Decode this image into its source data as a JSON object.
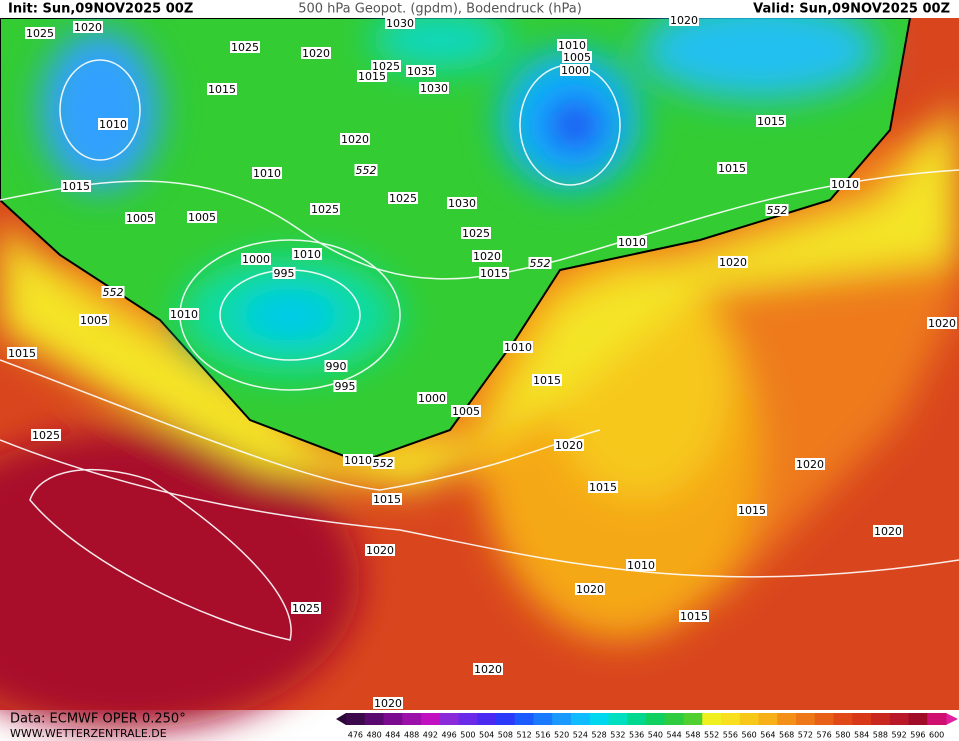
{
  "header": {
    "init": "Init: Sun,09NOV2025 00Z",
    "title": "500 hPa Geopot. (gpdm), Bodendruck (hPa)",
    "valid": "Valid: Sun,09NOV2025 00Z"
  },
  "map": {
    "labels": [
      "1025",
      "1020",
      "1025",
      "1020",
      "1030",
      "1025",
      "1015",
      "1035",
      "1030",
      "1010",
      "1005",
      "1000",
      "1020",
      "1015",
      "1010",
      "1020",
      "1015",
      "552",
      "1010",
      "1015",
      "1010",
      "1015",
      "1025",
      "1030",
      "552",
      "1005",
      "1005",
      "1025",
      "1025",
      "1010",
      "1020",
      "1000",
      "995",
      "1010",
      "1015",
      "552",
      "1020",
      "552",
      "1005",
      "1010",
      "1020",
      "1015",
      "990",
      "1010",
      "995",
      "1015",
      "1000",
      "1005",
      "1025",
      "1020",
      "1010",
      "552",
      "1020",
      "1015",
      "1015",
      "1015",
      "1020",
      "1020",
      "1010",
      "1020",
      "1025",
      "1015",
      "1020",
      "1020"
    ]
  },
  "colorbar": {
    "labels": [
      "476",
      "480",
      "484",
      "488",
      "492",
      "496",
      "500",
      "504",
      "508",
      "512",
      "516",
      "520",
      "524",
      "528",
      "532",
      "536",
      "540",
      "544",
      "548",
      "552",
      "556",
      "560",
      "564",
      "568",
      "572",
      "576",
      "580",
      "584",
      "588",
      "592",
      "596",
      "600"
    ],
    "colors": [
      "#3c0a4a",
      "#5a0a6e",
      "#7a0a8e",
      "#9a10a8",
      "#c010c0",
      "#8a2ad8",
      "#6a2ae8",
      "#4a2af0",
      "#2a3af8",
      "#1a5aff",
      "#1a7aff",
      "#1a9aff",
      "#10bcff",
      "#00d8f0",
      "#00e0c0",
      "#00d890",
      "#10d060",
      "#30cc40",
      "#50d030",
      "#f0f020",
      "#f8e020",
      "#f8c818",
      "#f8b018",
      "#f49018",
      "#ee7818",
      "#e86018",
      "#e04818",
      "#d83818",
      "#c82820",
      "#b81828",
      "#a00c28",
      "#d01070"
    ]
  },
  "footer": {
    "data": "Data: ECMWF OPER 0.250°",
    "site": "WWW.WETTERZENTRALE.DE"
  }
}
